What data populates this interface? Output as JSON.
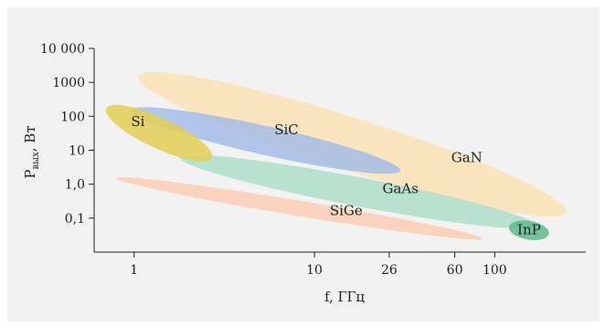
{
  "chart_data": {
    "type": "scatter",
    "xscale": "log",
    "yscale": "log",
    "xlabel": "f, ГГц",
    "ylabel_main": "P",
    "ylabel_sub": "вых",
    "ylabel_rest": ", Вт",
    "x_ticks": [
      {
        "value": 1,
        "label": "1"
      },
      {
        "value": 10,
        "label": "10"
      },
      {
        "value": 26,
        "label": "26"
      },
      {
        "value": 60,
        "label": "60"
      },
      {
        "value": 100,
        "label": "100"
      }
    ],
    "y_ticks": [
      {
        "value": 10000,
        "label": "10 000"
      },
      {
        "value": 1000,
        "label": "1000"
      },
      {
        "value": 100,
        "label": "100"
      },
      {
        "value": 10,
        "label": "10"
      },
      {
        "value": 1,
        "label": "1,0"
      },
      {
        "value": 0.1,
        "label": "0,1"
      }
    ],
    "xlim": [
      0.6,
      320
    ],
    "ylim": [
      0.01,
      10000
    ],
    "regions": [
      {
        "name": "GaN",
        "color": "#fde3b6",
        "x_range": [
          1.05,
          250
        ],
        "y_at_xmin": 1500,
        "y_at_xmax": 0.15,
        "thickness_decades": 1.55,
        "label_x": 70,
        "label_y": 6
      },
      {
        "name": "SiC",
        "color": "#a4bde6",
        "x_range": [
          0.95,
          30
        ],
        "y_at_xmin": 150,
        "y_at_xmax": 2.5,
        "thickness_decades": 0.85,
        "label_x": 7,
        "label_y": 40
      },
      {
        "name": "GaAs",
        "color": "#afdec8",
        "x_range": [
          1.8,
          170
        ],
        "y_at_xmin": 6,
        "y_at_xmax": 0.06,
        "thickness_decades": 0.85,
        "label_x": 30,
        "label_y": 0.75
      },
      {
        "name": "SiGe",
        "color": "#fbcdb3",
        "x_range": [
          0.8,
          85
        ],
        "y_at_xmin": 1.5,
        "y_at_xmax": 0.025,
        "thickness_decades": 0.45,
        "label_x": 15,
        "label_y": 0.17
      },
      {
        "name": "Si",
        "color": "#e3cf55",
        "x_range": [
          0.7,
          2.7
        ],
        "y_at_xmin": 170,
        "y_at_xmax": 6,
        "thickness_decades": 0.9,
        "label_x": 1.05,
        "label_y": 70
      },
      {
        "name": "InP",
        "color": "#5cbb8c",
        "x_range": [
          120,
          200
        ],
        "y_at_xmin": 0.055,
        "y_at_xmax": 0.035,
        "thickness_decades": 0.55,
        "label_x": 155,
        "label_y": 0.045
      }
    ]
  }
}
